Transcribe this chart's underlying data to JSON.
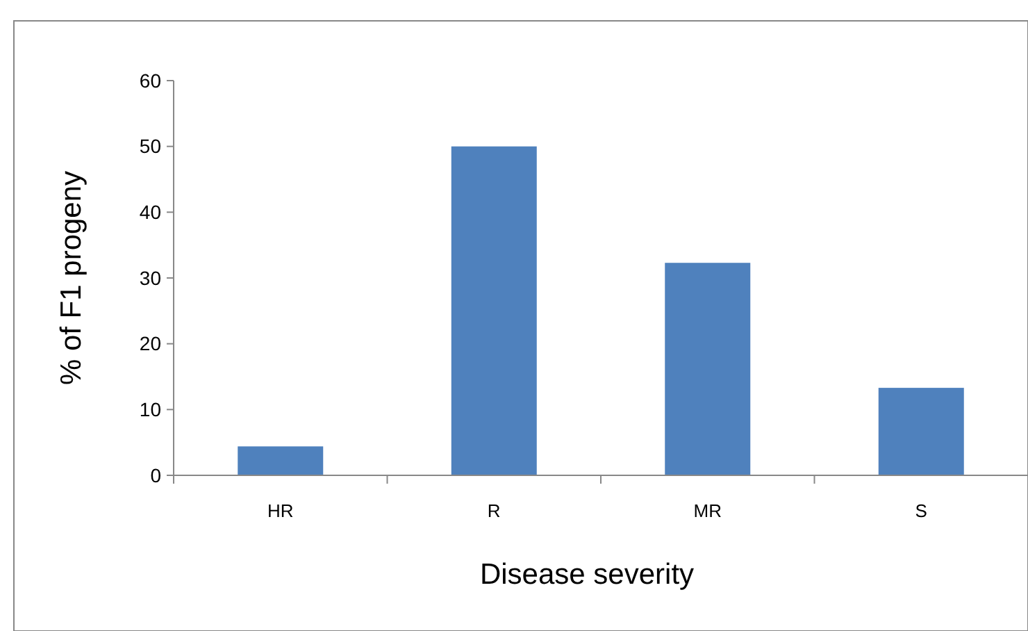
{
  "chart_data": {
    "type": "bar",
    "xlabel": "Disease severity",
    "ylabel": "% of F1 progeny",
    "categories": [
      "HR",
      "R",
      "MR",
      "S"
    ],
    "values": [
      4.4,
      50,
      32.3,
      13.3
    ],
    "color": "#4f81bd",
    "ylim": [
      0,
      60
    ],
    "yticks": [
      0,
      10,
      20,
      30,
      40,
      50,
      60
    ]
  }
}
